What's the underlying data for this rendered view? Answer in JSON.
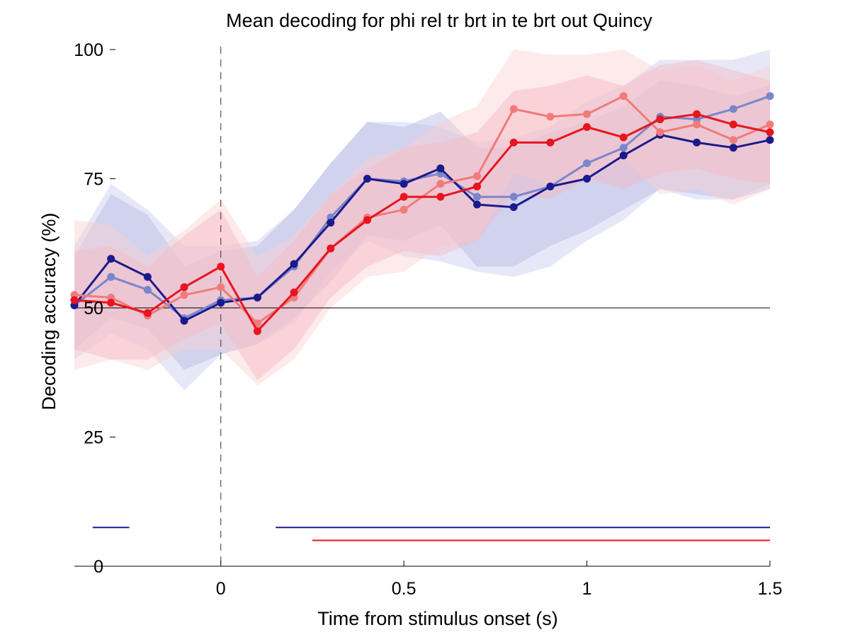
{
  "chart_data": {
    "type": "line",
    "title": "Mean decoding for phi rel tr brt in te brt out  Quincy",
    "xlabel": "Time from stimulus onset (s)",
    "ylabel": "Decoding accuracy (%)",
    "xlim": [
      -0.4,
      1.5
    ],
    "ylim": [
      0,
      100
    ],
    "xticks": [
      0,
      0.5,
      1,
      1.5
    ],
    "xtick_labels": [
      "0",
      "0.5",
      "1",
      "1.5"
    ],
    "yticks": [
      0,
      25,
      50,
      75,
      100
    ],
    "ytick_labels": [
      "0",
      "25",
      "50",
      "75",
      "100"
    ],
    "chance_level": 50,
    "stimulus_onset": 0,
    "grid": false,
    "legend": "none",
    "x": [
      -0.4,
      -0.3,
      -0.2,
      -0.1,
      0,
      0.1,
      0.2,
      0.3,
      0.4,
      0.5,
      0.6,
      0.7,
      0.8,
      0.9,
      1.0,
      1.1,
      1.2,
      1.3,
      1.4,
      1.5
    ],
    "series": [
      {
        "color": "#7986cb",
        "band_color": "#c8ccf0",
        "values": [
          50.5,
          56,
          53.5,
          48,
          51.5,
          52,
          58,
          67.5,
          75,
          74.5,
          76,
          71.5,
          71.5,
          73.5,
          78,
          81,
          87,
          86.5,
          88.5,
          91
        ],
        "lower": [
          40,
          45,
          42,
          34,
          41,
          43,
          47,
          57,
          63,
          60,
          59,
          57,
          56,
          58,
          63,
          67,
          73,
          71,
          71,
          74
        ],
        "upper": [
          62,
          74,
          69,
          62,
          62,
          63,
          69,
          78,
          86,
          86,
          85,
          82,
          83,
          85,
          90,
          93,
          98,
          98,
          98,
          100
        ]
      },
      {
        "color": "#1a1a8c",
        "band_color": "#b5b9e3",
        "values": [
          50.5,
          59.5,
          56,
          47.5,
          51,
          52,
          58.5,
          66.5,
          75,
          74,
          77,
          70,
          69.5,
          73.5,
          75,
          79.5,
          83.5,
          82,
          81,
          82.5
        ],
        "lower": [
          42,
          48,
          46,
          38,
          41,
          43,
          48,
          55,
          64,
          63,
          66,
          58,
          58,
          62,
          65,
          69,
          73,
          72,
          71,
          73
        ],
        "upper": [
          60,
          72,
          68,
          58,
          61,
          62,
          69,
          78,
          86,
          85,
          88,
          81,
          81,
          84,
          86,
          89,
          94,
          93,
          91,
          93
        ]
      },
      {
        "color": "#f07b7b",
        "band_color": "#fbd0d0",
        "values": [
          52.5,
          52,
          48.5,
          52.5,
          54,
          47,
          52,
          61.5,
          67.5,
          69,
          74,
          75.5,
          88.5,
          87,
          87.5,
          91,
          84,
          85.5,
          82.5,
          85.5
        ],
        "lower": [
          38,
          40,
          38,
          42,
          42,
          35,
          40,
          50,
          56,
          57,
          62,
          63,
          76,
          74,
          75,
          79,
          72,
          73,
          70,
          73
        ],
        "upper": [
          67,
          66,
          60,
          65,
          71,
          60,
          64,
          72,
          79,
          81,
          86,
          89,
          100,
          99,
          99,
          100,
          96,
          97,
          94,
          97
        ]
      },
      {
        "color": "#e8141e",
        "band_color": "#f7b9c4",
        "values": [
          51.5,
          51,
          49,
          54,
          58,
          45.5,
          53,
          61.5,
          67,
          71.5,
          71.5,
          73.5,
          82,
          82,
          85,
          83,
          86.5,
          87.5,
          85.5,
          84
        ],
        "lower": [
          42,
          40,
          40,
          44,
          47,
          36,
          42,
          52,
          58,
          61,
          60,
          63,
          72,
          71,
          75,
          73,
          76,
          77,
          75,
          74
        ],
        "upper": [
          61,
          62,
          58,
          64,
          69,
          56,
          63,
          72,
          77,
          81,
          82,
          84,
          92,
          93,
          95,
          93,
          97,
          98,
          96,
          94
        ]
      }
    ],
    "significance_bars": [
      {
        "color": "#1a1a8c",
        "y": 7.5,
        "segments": [
          [
            -0.35,
            -0.25
          ],
          [
            0.15,
            1.5
          ]
        ]
      },
      {
        "color": "#e8141e",
        "y": 5,
        "segments": [
          [
            0.25,
            1.5
          ]
        ]
      }
    ]
  }
}
